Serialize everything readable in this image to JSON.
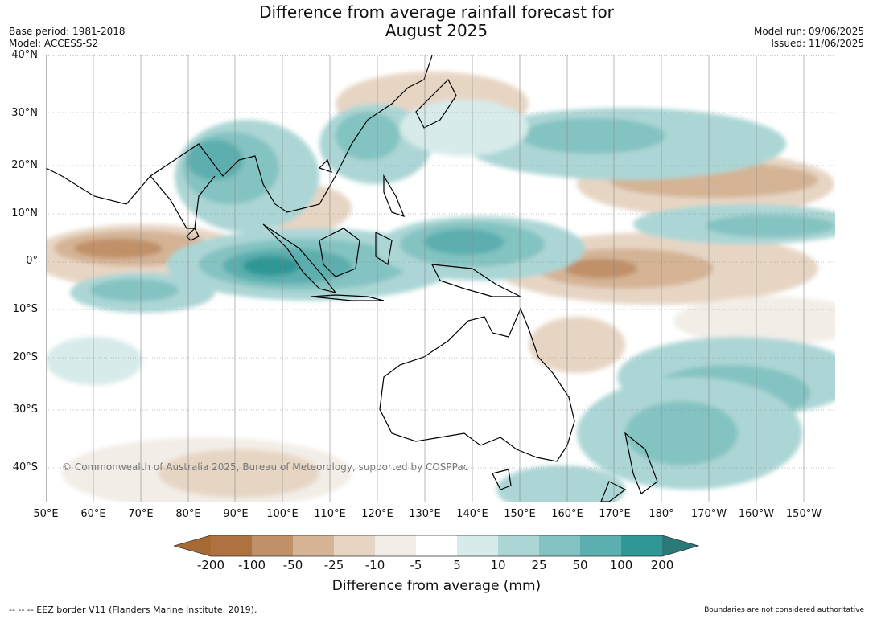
{
  "title": {
    "line1": "Difference from average rainfall forecast for",
    "line2": "August 2025"
  },
  "meta": {
    "base_period": "Base period: 1981-2018",
    "model": "Model: ACCESS-S2",
    "model_run": "Model run: 09/06/2025",
    "issued": "Issued: 11/06/2025"
  },
  "map": {
    "region": "Australia, Indian Ocean and western Pacific",
    "lat_labels": [
      "40°N",
      "30°N",
      "20°N",
      "10°N",
      "0°",
      "10°S",
      "20°S",
      "30°S",
      "40°S"
    ],
    "lon_labels": [
      "50°E",
      "60°E",
      "70°E",
      "80°E",
      "90°E",
      "100°E",
      "110°E",
      "120°E",
      "130°E",
      "140°E",
      "150°E",
      "160°E",
      "170°E",
      "180°",
      "170°W",
      "160°W",
      "150°W"
    ],
    "copyright": "© Commonwealth of Australia 2025, Bureau of Meteorology, supported by COSPPac",
    "colors": {
      "ocean_neutral": "#ffffff",
      "land_outline": "#000000",
      "country_border": "#808080",
      "graticule": "#888888"
    }
  },
  "colorbar": {
    "label": "Difference from average (mm)",
    "ticks": [
      "-200",
      "-100",
      "-50",
      "-25",
      "-10",
      "-5",
      "5",
      "10",
      "25",
      "50",
      "100",
      "200"
    ],
    "colors": [
      "#a86a33",
      "#ad7240",
      "#c09068",
      "#d4b495",
      "#e7d5c4",
      "#f2ede6",
      "#ffffff",
      "#d6ebea",
      "#acd6d5",
      "#83c3c1",
      "#5bafae",
      "#2f9795",
      "#2b7a77"
    ]
  },
  "footer": {
    "eez_legend": "--  --  -- EEZ border V11 (Flanders Marine Institute, 2019).",
    "disclaimer": "Boundaries are not considered authoritative"
  }
}
